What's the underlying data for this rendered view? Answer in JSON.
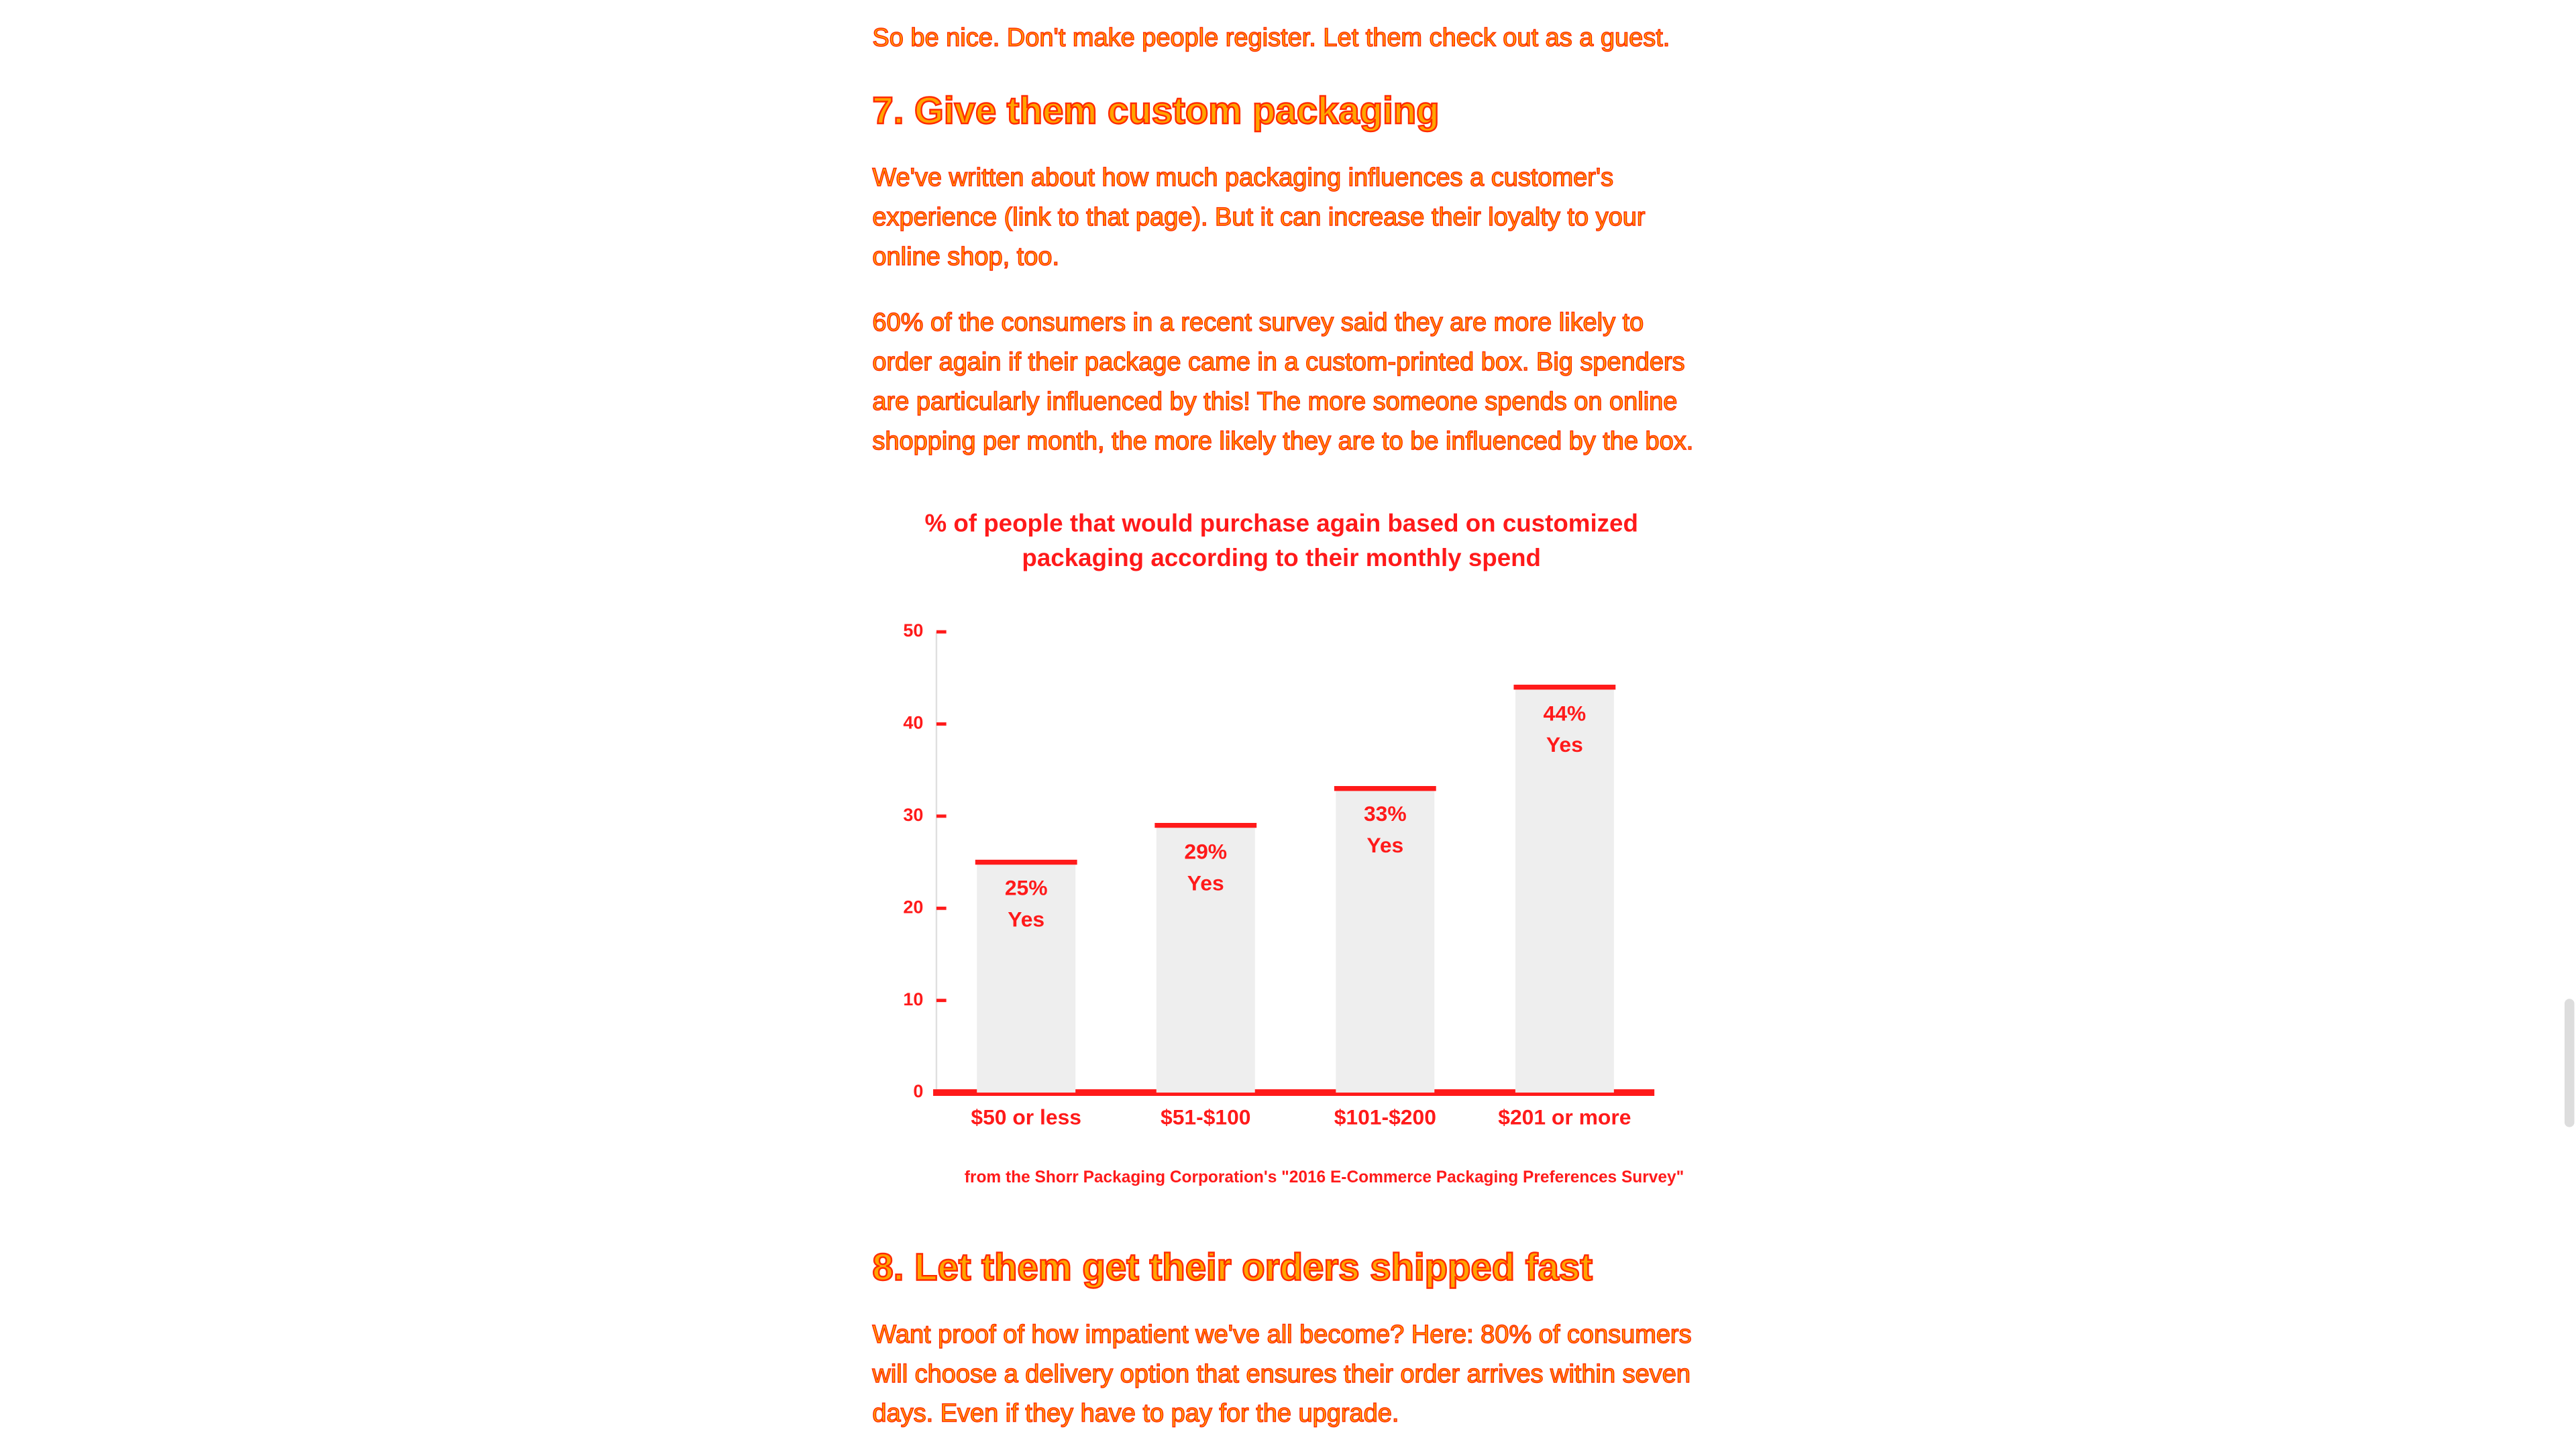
{
  "article": {
    "intro": "So be nice. Don't make people register. Let them check out as a guest.",
    "heading_7": "7. Give them custom packaging",
    "paragraph_1": "We've written about how much packaging influences a customer's experience (link to that page). But it can increase their loyalty to your online shop, too.",
    "paragraph_2": "60% of the consumers in a recent survey said they are more likely to order again if their package came in a custom-printed box. Big spenders are particularly influenced by this! The more someone spends on online shopping per month, the more likely they are to be influenced by the box.",
    "heading_8": "8. Let them get their orders shipped fast",
    "paragraph_3": "Want proof of how impatient we've all become? Here: 80% of consumers will choose a delivery option that ensures their order arrives within seven days. Even if they have to pay for the upgrade."
  },
  "chart_data": {
    "type": "bar",
    "title": "% of people that would purchase again based on customized packaging according to their monthly spend",
    "categories": [
      "$50 or less",
      "$51-$100",
      "$101-$200",
      "$201 or more"
    ],
    "values": [
      25,
      29,
      33,
      44
    ],
    "value_labels": [
      "25% Yes",
      "29% Yes",
      "33% Yes",
      "44% Yes"
    ],
    "color": "#eeeeee",
    "accent_color": "#ff1a1a",
    "ylim": [
      0,
      50
    ],
    "yticks": [
      0,
      10,
      20,
      30,
      40,
      50
    ],
    "source": "from the Shorr Packaging Corporation's \"2016 E-Commerce Packaging Preferences Survey\""
  }
}
